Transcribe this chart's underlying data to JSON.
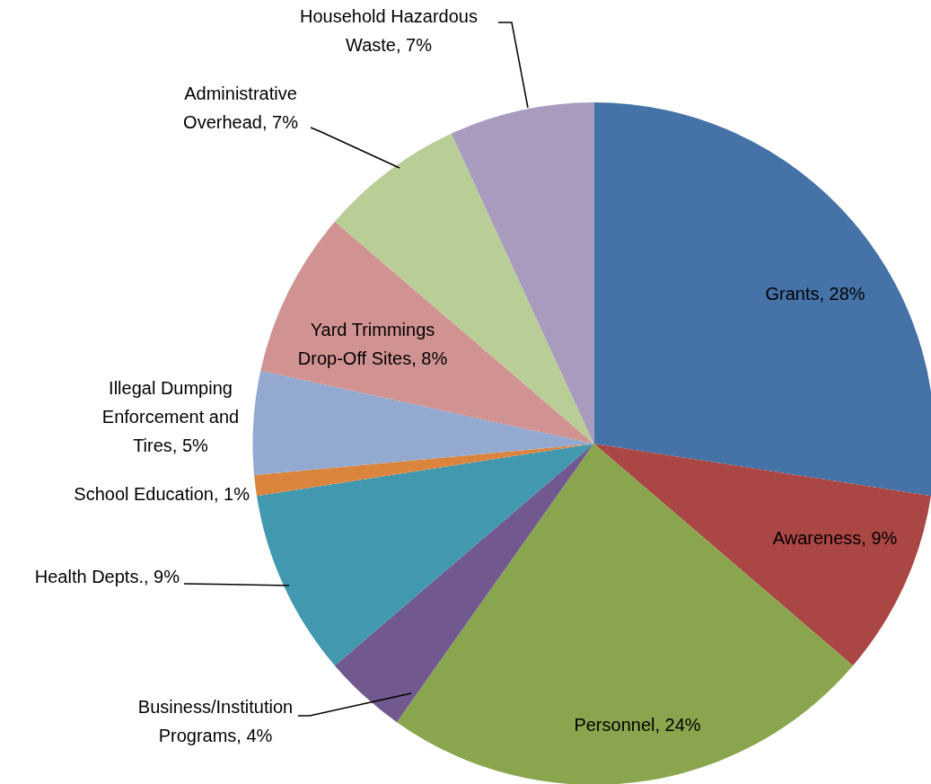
{
  "chart_data": {
    "type": "pie",
    "categories": [
      "Grants",
      "Awareness",
      "Personnel",
      "Business/Institution Programs",
      "Health Depts.",
      "School Education",
      "Illegal Dumping Enforcement and Tires",
      "Yard Trimmings Drop-Off Sites",
      "Administrative Overhead",
      "Household Hazardous Waste"
    ],
    "values": [
      28,
      9,
      24,
      4,
      9,
      1,
      5,
      8,
      7,
      7
    ],
    "value_labels": [
      "28%",
      "9%",
      "24%",
      "4%",
      "9%",
      "1%",
      "5%",
      "8%",
      "7%",
      "7%"
    ],
    "colors": [
      "#4572a7",
      "#aa4643",
      "#89a54e",
      "#71588f",
      "#4198af",
      "#db843d",
      "#93a9cf",
      "#d19392",
      "#b9cd96",
      "#a99bbd"
    ],
    "legend": false
  }
}
